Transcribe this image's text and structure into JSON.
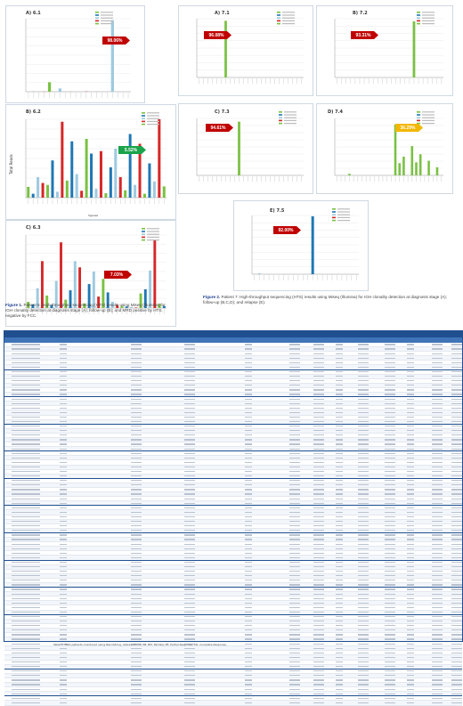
{
  "figure1": {
    "caption_label": "Figure 1.",
    "caption_text": "Patient 6. High-throughput sequencing (HTS) results using Miseq (Illumina) for IGH clonality detection at diagnosis stage (A); follow-up (B); and MRD positive by HTS, negative by FCC."
  },
  "figure2": {
    "caption_label": "Figure 2.",
    "caption_text": "Patient 7: High-throughput sequencing (HTS) results using Miseq (Illumina) for IGH clonality detection at diagnosis stage (A); follow-up (B,C,D); and relapse (E)."
  },
  "y_axis_label": "Total Reads",
  "x_axis_label": "Vgenes",
  "table_caption": "Table 1. MRD patients monitored using NanoString, Abbreviations: PB, BM, Partially PE, Partial Response, CR, Complete Response.",
  "colors": {
    "badge_red": "#c00000",
    "badge_green": "#1aa34a",
    "badge_yellow": "#f2b705",
    "table_header": "#1f4f8f",
    "table_subheader": "#3f74b8",
    "bar_green": "#7ac143",
    "bar_blue": "#1f77b4",
    "bar_lightblue": "#9ecae1",
    "bar_red": "#d62728"
  },
  "chart_data": [
    {
      "type": "bar",
      "title": "A) 6.1",
      "badge": "98.06%",
      "badge_color": "red",
      "ylim": [
        0,
        20000
      ],
      "series": [
        {
          "values": [
            0,
            20,
            0,
            40,
            2600,
            0,
            900,
            0,
            30,
            0,
            0,
            60,
            0,
            20,
            0,
            0,
            19600,
            0,
            0,
            0
          ]
        }
      ]
    },
    {
      "type": "bar",
      "title": "B) 6.2",
      "badge": "5.52%",
      "badge_color": "green",
      "ylim": [
        0,
        1600
      ],
      "series": [
        {
          "values": [
            220,
            80,
            420,
            300,
            260,
            760,
            120,
            1550,
            350,
            1150,
            480,
            140,
            1200,
            900,
            180,
            950,
            90,
            620,
            1000,
            420,
            150,
            1300,
            260,
            1100,
            80,
            700,
            330,
            1600,
            230
          ]
        }
      ]
    },
    {
      "type": "bar",
      "title": "C) 6.3",
      "badge": "7.03%",
      "badge_color": "red",
      "ylim": [
        0,
        1400
      ],
      "series": [
        {
          "values": [
            120,
            70,
            380,
            900,
            240,
            60,
            520,
            1260,
            160,
            340,
            900,
            780,
            90,
            460,
            700,
            220,
            560,
            300,
            120,
            60,
            40,
            30,
            20,
            10,
            280,
            360,
            720,
            1300,
            80,
            40
          ]
        }
      ]
    },
    {
      "type": "bar",
      "title": "A) 7.1",
      "badge": "96.08%",
      "badge_color": "red",
      "ylim": [
        0,
        14000
      ],
      "series": [
        {
          "values": [
            0,
            0,
            0,
            0,
            0,
            0,
            13500,
            0,
            0,
            0,
            0,
            0,
            0,
            0,
            0,
            0,
            0,
            0,
            0,
            0,
            0,
            0,
            0,
            0
          ]
        }
      ]
    },
    {
      "type": "bar",
      "title": "B) 7.2",
      "badge": "93.31%",
      "badge_color": "red",
      "ylim": [
        0,
        9000
      ],
      "series": [
        {
          "values": [
            0,
            0,
            0,
            0,
            0,
            0,
            0,
            0,
            0,
            0,
            0,
            0,
            0,
            0,
            0,
            0,
            0,
            8600,
            0,
            0,
            0,
            0,
            0,
            0
          ]
        }
      ]
    },
    {
      "type": "bar",
      "title": "C) 7.3",
      "badge": "94.61%",
      "badge_color": "red",
      "ylim": [
        0,
        14000
      ],
      "series": [
        {
          "values": [
            0,
            0,
            0,
            0,
            0,
            0,
            0,
            0,
            0,
            13200,
            0,
            0,
            0,
            0,
            0,
            0,
            0,
            0,
            0,
            0,
            0,
            0,
            0,
            0
          ]
        }
      ]
    },
    {
      "type": "bar",
      "title": "D) 7.4",
      "badge": "36.29%",
      "badge_color": "yellow",
      "ylim": [
        0,
        1400
      ],
      "series": [
        {
          "values": [
            0,
            0,
            0,
            40,
            0,
            0,
            0,
            0,
            0,
            0,
            0,
            0,
            0,
            0,
            1250,
            300,
            460,
            0,
            720,
            320,
            520,
            0,
            360,
            0,
            200,
            0
          ]
        }
      ]
    },
    {
      "type": "bar",
      "title": "E) 7.5",
      "badge": "92.00%",
      "badge_color": "red",
      "ylim": [
        0,
        14000
      ],
      "series": [
        {
          "values": [
            0,
            80,
            0,
            0,
            0,
            0,
            0,
            0,
            0,
            0,
            0,
            0,
            13800,
            0,
            0,
            0,
            0,
            0,
            0,
            0,
            0,
            0
          ]
        }
      ]
    }
  ]
}
